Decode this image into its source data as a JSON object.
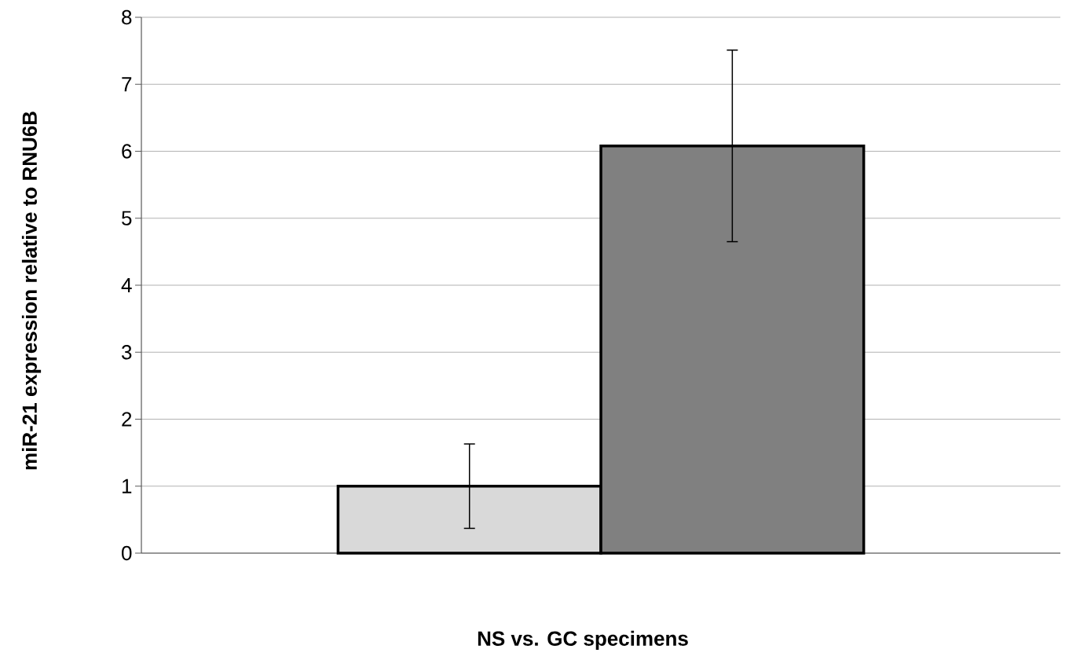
{
  "chart_data": {
    "type": "bar",
    "xlabel": "NS vs. GC specimens",
    "ylabel": "miR-21 expression relative to RNU6B",
    "categories": [
      null
    ],
    "series": [
      {
        "color": "#d9d9d9",
        "values": [
          1.0
        ],
        "errors": [
          0.63
        ]
      },
      {
        "color": "#808080",
        "values": [
          6.08
        ],
        "errors": [
          1.43
        ]
      }
    ],
    "ylim": [
      0,
      8
    ],
    "yticks": [
      0,
      1,
      2,
      3,
      4,
      5,
      6,
      7,
      8
    ],
    "grid": "y"
  }
}
